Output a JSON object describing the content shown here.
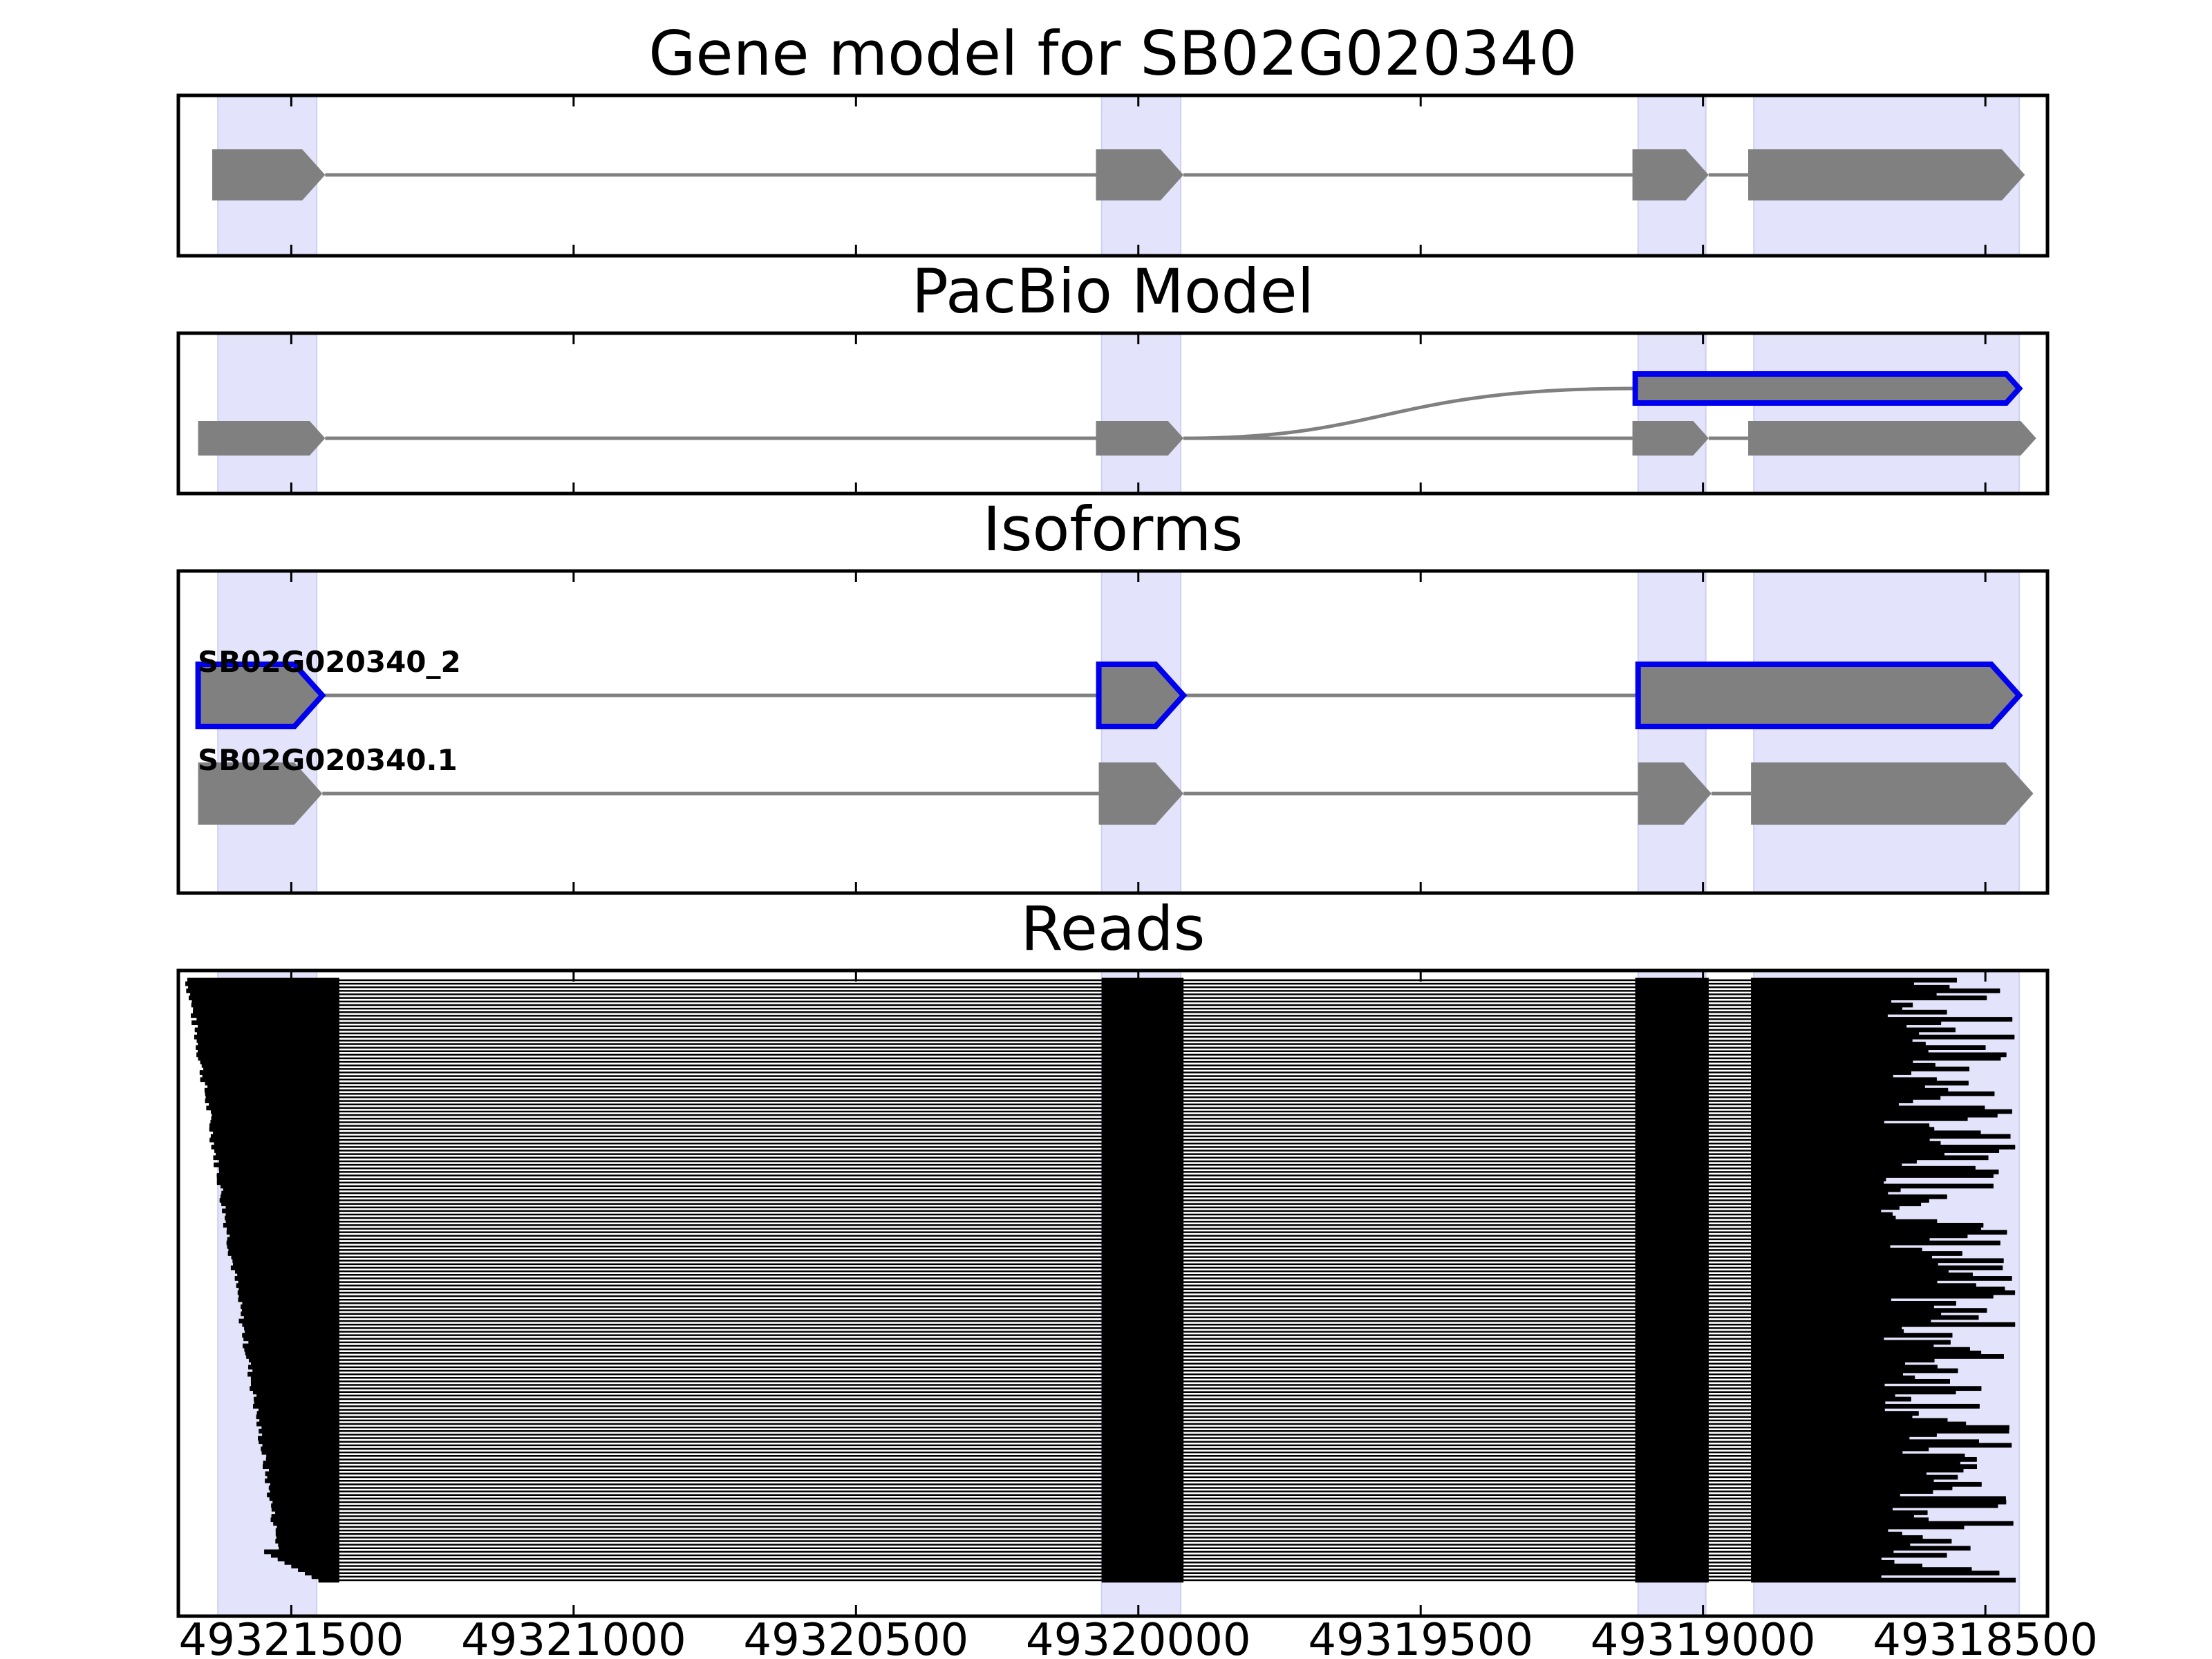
{
  "chart_data": {
    "type": "gene-structure",
    "colors": {
      "exon_fill": "#808080",
      "intron_line": "#808080",
      "highlight_band": "#e3e3fb",
      "highlight_outline": "#0000ee",
      "read": "#000000"
    },
    "x_axis": {
      "reversed": true,
      "xlim": [
        49321700,
        49318390
      ],
      "ticks": [
        {
          "value": 49321500,
          "label": "49321500"
        },
        {
          "value": 49321000,
          "label": "49321000"
        },
        {
          "value": 49320500,
          "label": "49320500"
        },
        {
          "value": 49320000,
          "label": "49320000"
        },
        {
          "value": 49319500,
          "label": "49319500"
        },
        {
          "value": 49319000,
          "label": "49319000"
        },
        {
          "value": 49318500,
          "label": "49318500"
        }
      ]
    },
    "exon_bands": [
      [
        49321630,
        49321455
      ],
      [
        49320065,
        49319925
      ],
      [
        49319115,
        49318995
      ],
      [
        49318910,
        49318440
      ]
    ],
    "panels": [
      {
        "title": "Gene model for SB02G020340",
        "tracks": [
          {
            "exons": [
              [
                49321640,
                49321440
              ],
              [
                49320075,
                49319920
              ],
              [
                49319125,
                49318990
              ],
              [
                49318920,
                49318430
              ]
            ]
          }
        ]
      },
      {
        "title": "PacBio Model",
        "tracks": [
          {
            "exons": [
              [
                49319120,
                49318440
              ]
            ],
            "highlight": true,
            "connect_from": 49319920
          },
          {
            "exons": [
              [
                49321665,
                49321440
              ],
              [
                49320075,
                49319920
              ],
              [
                49319125,
                49318990
              ],
              [
                49318920,
                49318410
              ]
            ]
          }
        ]
      },
      {
        "title": "Isoforms",
        "tracks": [
          {
            "label": "SB02G020340_2",
            "exons": [
              [
                49321665,
                49321445
              ],
              [
                49320070,
                49319920
              ],
              [
                49319115,
                49318440
              ]
            ],
            "highlight": true
          },
          {
            "label": "SB02G020340.1",
            "exons": [
              [
                49321665,
                49321445
              ],
              [
                49320070,
                49319920
              ],
              [
                49319115,
                49318985
              ],
              [
                49318915,
                49318415
              ]
            ]
          }
        ]
      },
      {
        "title": "Reads",
        "read_count": 170,
        "read_ends": [
          49318545,
          49318470
        ]
      }
    ]
  }
}
